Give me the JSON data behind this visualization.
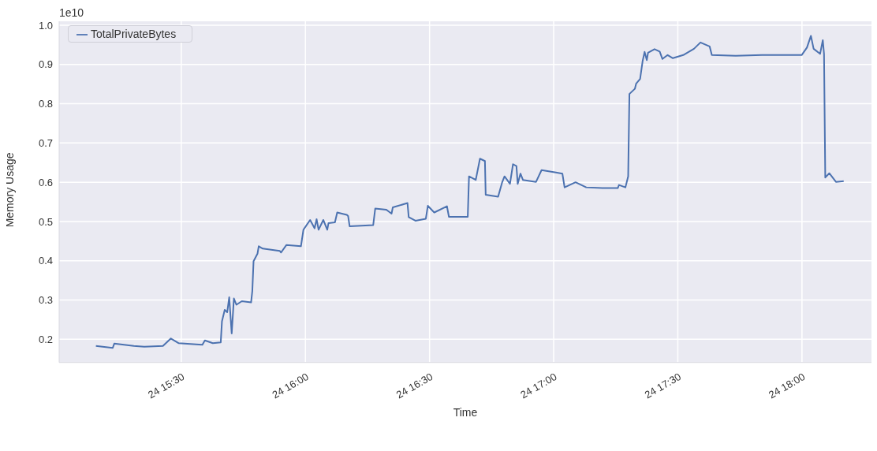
{
  "chart_data": {
    "type": "line",
    "xlabel": "Time",
    "ylabel": "Memory Usage",
    "annotations": [
      "1e10"
    ],
    "xlim": [
      "--01-24T15:00:29",
      "--01-24T18:16:48"
    ],
    "ylim": [
      0.141,
      1.01
    ],
    "xticks": [
      {
        "value": "--01-24T15:30",
        "label": "24 15:30"
      },
      {
        "value": "--01-24T16:00",
        "label": "24 16:00"
      },
      {
        "value": "--01-24T16:30",
        "label": "24 16:30"
      },
      {
        "value": "--01-24T17:00",
        "label": "24 17:00"
      },
      {
        "value": "--01-24T17:30",
        "label": "24 17:30"
      },
      {
        "value": "--01-24T18:00",
        "label": "24 18:00"
      }
    ],
    "yticks": [
      0.2,
      0.3,
      0.4,
      0.5,
      0.6,
      0.7,
      0.8,
      0.9,
      {
        "value": 1,
        "label": "1.0"
      }
    ],
    "grid": true,
    "legend": "top left",
    "line_style": "solid",
    "series": [
      {
        "name": "TotalPrivateBytes",
        "color": "#4c72b0",
        "x": [
          "--01-24T15:09:22",
          "--01-24T15:13:26",
          "--01-24T15:13:48",
          "--01-24T15:18:32",
          "--01-24T15:21:04",
          "--01-24T15:25:34",
          "--01-24T15:27:29",
          "--01-24T15:29:24",
          "--01-24T15:35:06",
          "--01-24T15:35:42",
          "--01-24T15:37:37",
          "--01-24T15:39:32",
          "--01-24T15:39:50",
          "--01-24T15:40:30",
          "--01-24T15:41:06",
          "--01-24T15:41:35",
          "--01-24T15:42:11",
          "--01-24T15:42:43",
          "--01-24T15:43:19",
          "--01-24T15:44:38",
          "--01-24T15:46:52",
          "--01-24T15:47:10",
          "--01-24T15:47:28",
          "--01-24T15:48:25",
          "--01-24T15:48:43",
          "--01-24T15:49:41",
          "--01-24T15:53:49",
          "--01-24T15:54:07",
          "--01-24T15:55:23",
          "--01-24T15:58:55",
          "--01-24T15:59:31",
          "--01-24T16:01:08",
          "--01-24T16:02:13",
          "--01-24T16:02:42",
          "--01-24T16:03:11",
          "--01-24T16:04:19",
          "--01-24T16:05:17",
          "--01-24T16:05:35",
          "--01-24T16:07:08",
          "--01-24T16:07:41",
          "--01-24T16:10:01",
          "--01-24T16:10:19",
          "--01-24T16:10:41",
          "--01-24T16:16:23",
          "--01-24T16:16:52",
          "--01-24T16:19:34",
          "--01-24T16:20:49",
          "--01-24T16:21:07",
          "--01-24T16:24:40",
          "--01-24T16:24:58",
          "--01-24T16:26:35",
          "--01-24T16:29:06",
          "--01-24T16:29:35",
          "--01-24T16:31:08",
          "--01-24T16:34:12",
          "--01-24T16:34:41",
          "--01-24T16:39:14",
          "--01-24T16:39:32",
          "--01-24T16:41:10",
          "--01-24T16:42:11",
          "--01-24T16:43:23",
          "--01-24T16:43:34",
          "--01-24T16:46:34",
          "--01-24T16:47:31",
          "--01-24T16:48:07",
          "--01-24T16:49:26",
          "--01-24T16:50:10",
          "--01-24T16:51:00",
          "--01-24T16:51:18",
          "--01-24T16:51:58",
          "--01-24T16:52:34",
          "--01-24T16:55:44",
          "--01-24T16:57:04",
          "--01-24T17:00:32",
          "--01-24T17:02:06",
          "--01-24T17:02:38",
          "--01-24T17:05:17",
          "--01-24T17:07:52",
          "--01-24T17:12:18",
          "--01-24T17:15:29",
          "--01-24T17:15:47",
          "--01-24T17:17:20",
          "--01-24T17:18:00",
          "--01-24T17:18:18",
          "--01-24T17:19:37",
          "--01-24T17:19:55",
          "--01-24T17:20:53",
          "--01-24T17:21:29",
          "--01-24T17:21:58",
          "--01-24T17:22:30",
          "--01-24T17:22:48",
          "--01-24T17:24:22",
          "--01-24T17:25:37",
          "--01-24T17:26:17",
          "--01-24T17:27:32",
          "--01-24T17:28:48",
          "--01-24T17:31:19",
          "--01-24T17:33:54",
          "--01-24T17:35:28",
          "--01-24T17:37:41",
          "--01-24T17:38:13",
          "--01-24T17:43:59",
          "--01-24T17:50:20",
          "--01-24T17:59:56",
          "--01-24T18:01:12",
          "--01-24T18:02:10",
          "--01-24T18:02:49",
          "--01-24T18:04:23",
          "--01-24T18:05:02",
          "--01-24T18:05:20",
          "--01-24T18:05:38",
          "--01-24T18:06:36",
          "--01-24T18:08:13",
          "--01-24T18:10:05"
        ],
        "values": [
          0.183,
          0.178,
          0.189,
          0.183,
          0.181,
          0.183,
          0.202,
          0.19,
          0.186,
          0.197,
          0.19,
          0.192,
          0.246,
          0.275,
          0.269,
          0.307,
          0.215,
          0.304,
          0.288,
          0.297,
          0.294,
          0.323,
          0.399,
          0.418,
          0.437,
          0.431,
          0.425,
          0.421,
          0.44,
          0.437,
          0.479,
          0.504,
          0.483,
          0.506,
          0.479,
          0.504,
          0.479,
          0.496,
          0.498,
          0.523,
          0.517,
          0.514,
          0.488,
          0.491,
          0.533,
          0.53,
          0.52,
          0.536,
          0.547,
          0.511,
          0.502,
          0.507,
          0.54,
          0.523,
          0.539,
          0.512,
          0.512,
          0.615,
          0.606,
          0.66,
          0.654,
          0.568,
          0.563,
          0.599,
          0.615,
          0.596,
          0.646,
          0.641,
          0.596,
          0.622,
          0.606,
          0.601,
          0.631,
          0.625,
          0.622,
          0.587,
          0.6,
          0.587,
          0.585,
          0.585,
          0.593,
          0.587,
          0.615,
          0.825,
          0.838,
          0.851,
          0.863,
          0.908,
          0.932,
          0.911,
          0.93,
          0.939,
          0.933,
          0.914,
          0.924,
          0.916,
          0.924,
          0.94,
          0.956,
          0.946,
          0.924,
          0.922,
          0.924,
          0.924,
          0.943,
          0.973,
          0.94,
          0.927,
          0.962,
          0.927,
          0.612,
          0.623,
          0.601,
          0.603
        ]
      }
    ]
  }
}
